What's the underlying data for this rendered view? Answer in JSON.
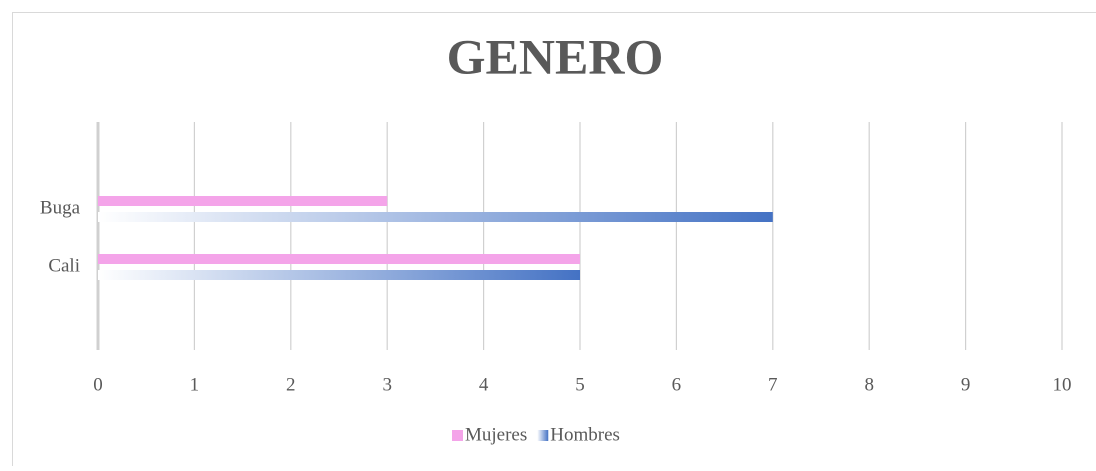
{
  "chart_data": {
    "type": "barh",
    "title": "GENERO",
    "categories": [
      "Buga",
      "Cali"
    ],
    "series": [
      {
        "name": "Mujeres",
        "color": "#f4a4e9",
        "values": [
          3,
          5
        ]
      },
      {
        "name": "Hombres",
        "color": "#4472c4",
        "values": [
          7,
          5
        ]
      }
    ],
    "xlim": [
      0,
      10
    ],
    "xticks": [
      0,
      1,
      2,
      3,
      4,
      5,
      6,
      7,
      8,
      9,
      10
    ],
    "grid": true,
    "legend": "bottom"
  }
}
